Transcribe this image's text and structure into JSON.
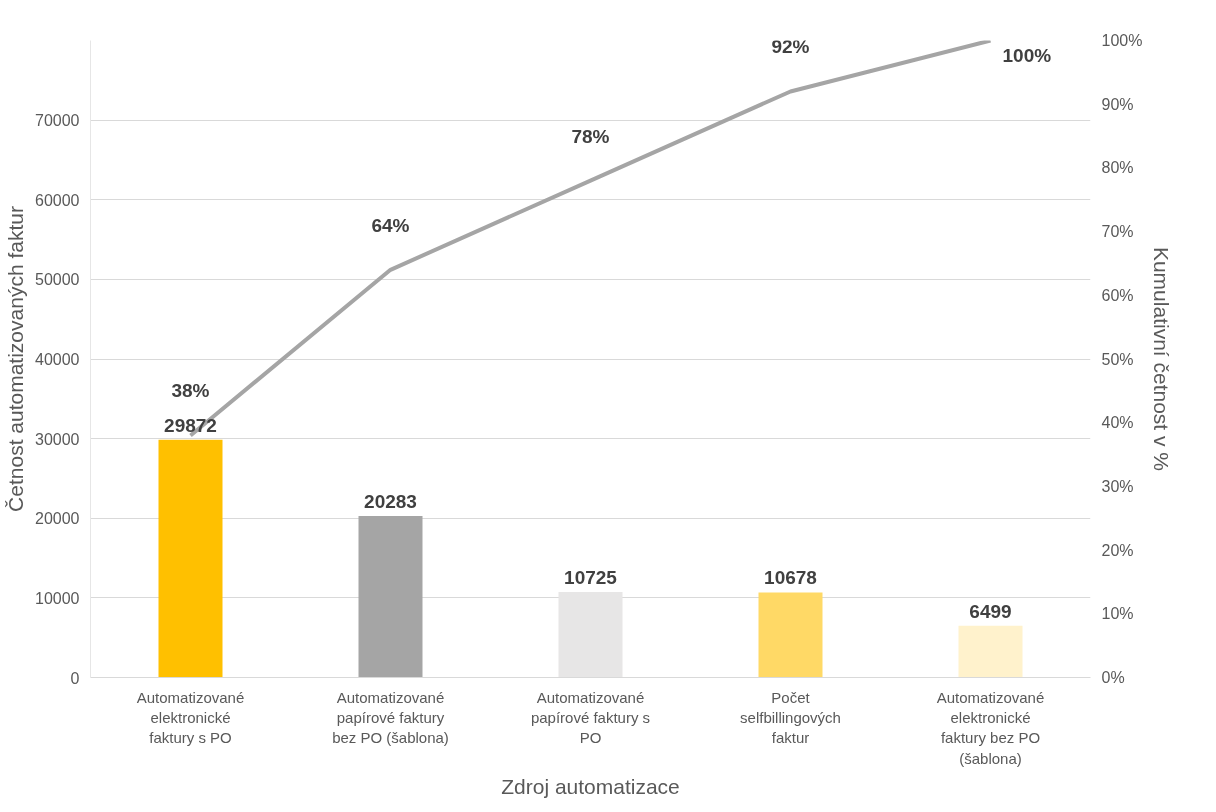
{
  "chart_data": {
    "type": "bar",
    "categories": [
      "Automatizované elektronické faktury s PO",
      "Automatizované papírové faktury bez PO (šablona)",
      "Automatizované papírové faktury s PO",
      "Počet selfbillingových faktur",
      "Automatizované elektronické faktury bez PO (šablona)"
    ],
    "xlabel": "Zdroj automatizace",
    "ylabel": "Četnost automatizovaných faktur",
    "y2label": "Kumulativní četnost v %",
    "series": [
      {
        "colors": [
          "#ffc000",
          "#a5a5a5",
          "#e7e6e6",
          "#ffd966",
          "#fff2cc"
        ],
        "values": [
          29872,
          20283,
          10725,
          10678,
          6499
        ],
        "value_labels": [
          "29872",
          "20283",
          "10725",
          "10678",
          "6499"
        ]
      },
      {
        "type": "line",
        "axis": "y2",
        "color": "#a5a5a5",
        "values": [
          38,
          64,
          78,
          92,
          100
        ],
        "value_labels": [
          "38%",
          "64%",
          "78%",
          "92%",
          "100%"
        ]
      }
    ],
    "ylim": [
      0,
      80000
    ],
    "yticks": [
      0,
      10000,
      20000,
      30000,
      40000,
      50000,
      60000,
      70000
    ],
    "y2lim": [
      0,
      100
    ],
    "y2ticks": [
      {
        "value": 0,
        "label": "0%"
      },
      {
        "value": 10,
        "label": "10%"
      },
      {
        "value": 20,
        "label": "20%"
      },
      {
        "value": 30,
        "label": "30%"
      },
      {
        "value": 40,
        "label": "40%"
      },
      {
        "value": 50,
        "label": "50%"
      },
      {
        "value": 60,
        "label": "60%"
      },
      {
        "value": 70,
        "label": "70%"
      },
      {
        "value": 80,
        "label": "80%"
      },
      {
        "value": 90,
        "label": "90%"
      },
      {
        "value": 100,
        "label": "100%"
      }
    ],
    "grid": "y",
    "line_style": "solid",
    "marker": "none"
  }
}
